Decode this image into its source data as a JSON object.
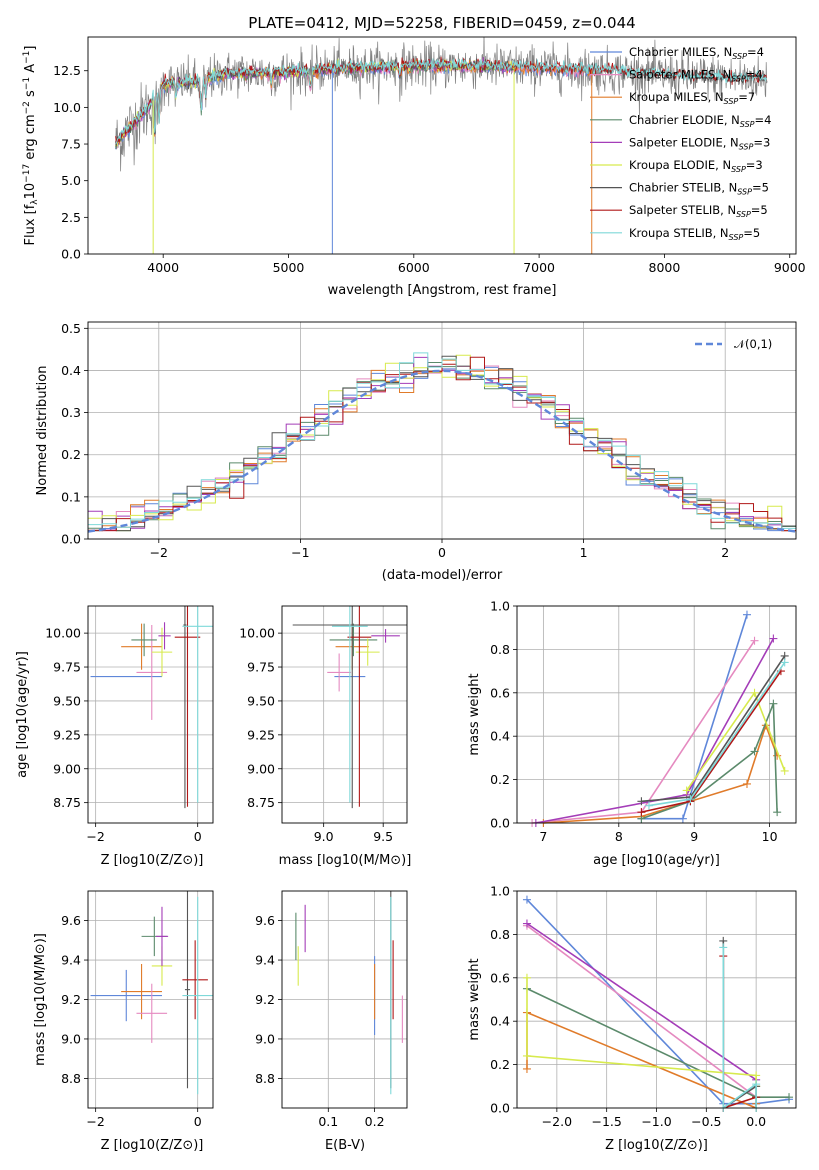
{
  "chart_data": [
    {
      "type": "line",
      "panel": "spectrum",
      "title": "PLATE=0412, MJD=52258, FIBERID=0459, z=0.044",
      "xlabel": "wavelength [Angstrom, rest frame]",
      "ylabel": "Flux [f_λ 10^-17 erg cm^-2 s^-1 A^-1]",
      "xlim": [
        3400,
        9050
      ],
      "ylim": [
        0,
        14.8
      ],
      "xticks": [
        "4000",
        "5000",
        "6000",
        "7000",
        "8000",
        "9000"
      ],
      "yticks": [
        "0.0",
        "2.5",
        "5.0",
        "7.5",
        "10.0",
        "12.5"
      ],
      "legend_position": "top-right",
      "data_range": [
        3620,
        8820
      ],
      "continuum_x": [
        3620,
        3700,
        3900,
        4000,
        4300,
        4500,
        5000,
        5500,
        6000,
        6500,
        7000,
        7500,
        8000,
        8500,
        8820
      ],
      "continuum_y": [
        7.5,
        8.3,
        10.2,
        11.6,
        11.8,
        12.3,
        12.4,
        12.7,
        12.8,
        12.8,
        12.7,
        12.5,
        12.2,
        12.0,
        11.9
      ],
      "series": [
        {
          "name": "Chabrier MILES, N_SSP=4",
          "color": "#5f87d9",
          "end": 7420
        },
        {
          "name": "Salpeter MILES, N_SSP=4",
          "color": "#e58ac0",
          "end": 7420
        },
        {
          "name": "Kroupa MILES, N_SSP=7",
          "color": "#e07b2a",
          "end": 7420
        },
        {
          "name": "Chabrier ELODIE, N_SSP=4",
          "color": "#5b8a6b",
          "end": 6800
        },
        {
          "name": "Salpeter ELODIE, N_SSP=3",
          "color": "#a43db8",
          "end": 6800
        },
        {
          "name": "Kroupa ELODIE, N_SSP=3",
          "color": "#d7ea4d",
          "end": 6800
        },
        {
          "name": "Chabrier STELIB, N_SSP=5",
          "color": "#555555",
          "end": 8820
        },
        {
          "name": "Salpeter STELIB, N_SSP=5",
          "color": "#b01818",
          "end": 8820
        },
        {
          "name": "Kroupa STELIB, N_SSP=5",
          "color": "#7fd9d9",
          "end": 8820
        }
      ]
    },
    {
      "type": "line",
      "panel": "residuals",
      "xlabel": "(data-model)/error",
      "ylabel": "Normed distribution",
      "xlim": [
        -2.5,
        2.5
      ],
      "ylim": [
        0,
        0.515
      ],
      "xticks": [
        "−2",
        "−1",
        "0",
        "1",
        "2"
      ],
      "yticks": [
        "0.0",
        "0.1",
        "0.2",
        "0.3",
        "0.4",
        "0.5"
      ],
      "legend_position": "top-right",
      "reference": {
        "name": "𝒩(0,1)",
        "mean": 0,
        "sigma": 1
      },
      "bin_width": 0.1
    },
    {
      "type": "scatter",
      "panel": "age-vs-Z",
      "xlabel": "Z [log10(Z/Z⊙)]",
      "ylabel": "age  [log10(age/yr)]",
      "xlim": [
        -2.15,
        0.3
      ],
      "ylim": [
        8.6,
        10.2
      ],
      "xticks": [
        "−2",
        "0"
      ],
      "yticks": [
        "8.75",
        "9.00",
        "9.25",
        "9.50",
        "9.75",
        "10.00"
      ],
      "points": [
        {
          "x": -1.4,
          "xerr": 0.7,
          "y": 9.68,
          "yerr": 0.0,
          "color": "#5f87d9"
        },
        {
          "x": -1.1,
          "xerr": 0.4,
          "y": 9.9,
          "yerr": 0.17,
          "color": "#e07b2a"
        },
        {
          "x": -0.9,
          "xerr": 0.3,
          "y": 9.71,
          "yerr": 0.35,
          "color": "#e58ac0"
        },
        {
          "x": -1.05,
          "xerr": 0.25,
          "y": 9.95,
          "yerr": 0.12,
          "color": "#5b8a6b"
        },
        {
          "x": -0.7,
          "xerr": 0.2,
          "y": 9.86,
          "yerr": 0.18,
          "color": "#d7ea4d"
        },
        {
          "x": -0.65,
          "xerr": 0.12,
          "y": 9.98,
          "yerr": 0.1,
          "color": "#a43db8"
        },
        {
          "x": -0.25,
          "xerr": 0.03,
          "y": 10.06,
          "yerr": 1.35,
          "color": "#555555"
        },
        {
          "x": -0.2,
          "xerr": 0.25,
          "y": 9.97,
          "yerr": 1.25,
          "color": "#b01818"
        },
        {
          "x": 0.0,
          "xerr": 0.3,
          "y": 10.05,
          "yerr": 1.3,
          "color": "#7fd9d9"
        }
      ]
    },
    {
      "type": "scatter",
      "panel": "age-vs-mass",
      "xlabel": "mass [log10(M/M⊙)]",
      "ylabel": "",
      "xlim": [
        8.65,
        9.7
      ],
      "ylim": [
        8.6,
        10.2
      ],
      "xticks": [
        "9.0",
        "9.5"
      ],
      "yticks": [
        "8.75",
        "9.00",
        "9.25",
        "9.50",
        "9.75",
        "10.00"
      ],
      "points": [
        {
          "x": 9.22,
          "xerr": 0.13,
          "y": 9.68,
          "yerr": 0.0,
          "color": "#5f87d9"
        },
        {
          "x": 9.24,
          "xerr": 0.14,
          "y": 9.9,
          "yerr": 0.17,
          "color": "#e07b2a"
        },
        {
          "x": 9.13,
          "xerr": 0.1,
          "y": 9.71,
          "yerr": 0.14,
          "color": "#e58ac0"
        },
        {
          "x": 9.25,
          "xerr": 0.2,
          "y": 9.95,
          "yerr": 0.12,
          "color": "#5b8a6b"
        },
        {
          "x": 9.37,
          "xerr": 0.1,
          "y": 9.86,
          "yerr": 0.1,
          "color": "#d7ea4d"
        },
        {
          "x": 9.52,
          "xerr": 0.12,
          "y": 9.98,
          "yerr": 0.05,
          "color": "#a43db8"
        },
        {
          "x": 9.24,
          "xerr": 0.5,
          "y": 10.06,
          "yerr": 1.35,
          "color": "#555555"
        },
        {
          "x": 9.3,
          "xerr": 0.1,
          "y": 9.97,
          "yerr": 1.25,
          "color": "#b01818"
        },
        {
          "x": 9.22,
          "xerr": 0.15,
          "y": 10.05,
          "yerr": 1.3,
          "color": "#7fd9d9"
        }
      ]
    },
    {
      "type": "line",
      "panel": "mass-weight-vs-age",
      "xlabel": "age  [log10(age/yr)]",
      "ylabel": "mass weight",
      "xlim": [
        6.65,
        10.35
      ],
      "ylim": [
        0,
        1.0
      ],
      "xticks": [
        "7",
        "8",
        "9",
        "10"
      ],
      "yticks": [
        "0.0",
        "0.2",
        "0.4",
        "0.6",
        "0.8",
        "1.0"
      ],
      "series": [
        {
          "color": "#5f87d9",
          "x": [
            8.3,
            8.85,
            9.7
          ],
          "y": [
            0.02,
            0.02,
            0.96
          ]
        },
        {
          "color": "#e58ac0",
          "x": [
            6.85,
            8.3,
            9.8
          ],
          "y": [
            0.0,
            0.05,
            0.84
          ]
        },
        {
          "color": "#e07b2a",
          "x": [
            7.0,
            8.3,
            9.7,
            9.95,
            10.1
          ],
          "y": [
            0.0,
            0.03,
            0.18,
            0.45,
            0.31
          ]
        },
        {
          "color": "#a43db8",
          "x": [
            6.9,
            8.9,
            10.05
          ],
          "y": [
            0.0,
            0.13,
            0.85
          ]
        },
        {
          "color": "#5b8a6b",
          "x": [
            8.3,
            8.95,
            9.8,
            10.05,
            10.1
          ],
          "y": [
            0.02,
            0.1,
            0.33,
            0.55,
            0.05
          ]
        },
        {
          "color": "#d7ea4d",
          "x": [
            8.9,
            9.8,
            10.2
          ],
          "y": [
            0.15,
            0.6,
            0.24
          ]
        },
        {
          "color": "#555555",
          "x": [
            8.3,
            8.95,
            10.2
          ],
          "y": [
            0.1,
            0.12,
            0.77
          ]
        },
        {
          "color": "#b01818",
          "x": [
            8.3,
            8.95,
            10.15
          ],
          "y": [
            0.05,
            0.1,
            0.7
          ]
        },
        {
          "color": "#7fd9d9",
          "x": [
            8.4,
            8.95,
            10.2
          ],
          "y": [
            0.08,
            0.11,
            0.74
          ]
        }
      ]
    },
    {
      "type": "scatter",
      "panel": "mass-vs-Z",
      "xlabel": "Z [log10(Z/Z⊙)]",
      "ylabel": "mass [log10(M/M⊙)]",
      "xlim": [
        -2.15,
        0.3
      ],
      "ylim": [
        8.65,
        9.75
      ],
      "xticks": [
        "−2",
        "0"
      ],
      "yticks": [
        "8.8",
        "9.0",
        "9.2",
        "9.4",
        "9.6"
      ],
      "points": [
        {
          "x": -1.4,
          "xerr": 0.7,
          "y": 9.22,
          "yerr": 0.13,
          "color": "#5f87d9"
        },
        {
          "x": -1.1,
          "xerr": 0.4,
          "y": 9.24,
          "yerr": 0.14,
          "color": "#e07b2a"
        },
        {
          "x": -0.9,
          "xerr": 0.3,
          "y": 9.13,
          "yerr": 0.15,
          "color": "#e58ac0"
        },
        {
          "x": -0.85,
          "xerr": 0.25,
          "y": 9.52,
          "yerr": 0.1,
          "color": "#5b8a6b"
        },
        {
          "x": -0.7,
          "xerr": 0.2,
          "y": 9.37,
          "yerr": 0.1,
          "color": "#d7ea4d"
        },
        {
          "x": -0.7,
          "xerr": 0.12,
          "y": 9.52,
          "yerr": 0.15,
          "color": "#a43db8"
        },
        {
          "x": -0.2,
          "xerr": 0.05,
          "y": 9.25,
          "yerr": 0.5,
          "color": "#555555"
        },
        {
          "x": -0.05,
          "xerr": 0.25,
          "y": 9.3,
          "yerr": 0.2,
          "color": "#b01818"
        },
        {
          "x": 0.0,
          "xerr": 0.3,
          "y": 9.22,
          "yerr": 0.5,
          "color": "#7fd9d9"
        }
      ]
    },
    {
      "type": "scatter",
      "panel": "mass-vs-EBV",
      "xlabel": "E(B-V)",
      "ylabel": "",
      "xlim": [
        0.0,
        0.27
      ],
      "ylim": [
        8.65,
        9.75
      ],
      "xticks": [
        "0.1",
        "0.2"
      ],
      "yticks": [
        "8.8",
        "9.0",
        "9.2",
        "9.4",
        "9.6"
      ],
      "points": [
        {
          "x": 0.2,
          "xerr": 0.0,
          "y": 9.22,
          "yerr": 0.2,
          "color": "#5f87d9"
        },
        {
          "x": 0.2,
          "xerr": 0.0,
          "y": 9.24,
          "yerr": 0.14,
          "color": "#e07b2a"
        },
        {
          "x": 0.26,
          "xerr": 0.0,
          "y": 9.1,
          "yerr": 0.12,
          "color": "#e58ac0"
        },
        {
          "x": 0.03,
          "xerr": 0.0,
          "y": 9.52,
          "yerr": 0.12,
          "color": "#5b8a6b"
        },
        {
          "x": 0.035,
          "xerr": 0.0,
          "y": 9.37,
          "yerr": 0.1,
          "color": "#d7ea4d"
        },
        {
          "x": 0.05,
          "xerr": 0.0,
          "y": 9.56,
          "yerr": 0.12,
          "color": "#a43db8"
        },
        {
          "x": 0.235,
          "xerr": 0.0,
          "y": 9.25,
          "yerr": 0.5,
          "color": "#555555"
        },
        {
          "x": 0.24,
          "xerr": 0.0,
          "y": 9.3,
          "yerr": 0.2,
          "color": "#b01818"
        },
        {
          "x": 0.235,
          "xerr": 0.0,
          "y": 9.22,
          "yerr": 0.5,
          "color": "#7fd9d9"
        }
      ]
    },
    {
      "type": "line",
      "panel": "mass-weight-vs-Z",
      "xlabel": "Z [log10(Z/Z⊙)]",
      "ylabel": "mass weight",
      "xlim": [
        -2.4,
        0.4
      ],
      "ylim": [
        0,
        1.0
      ],
      "xticks": [
        "−2.0",
        "−1.5",
        "−1.0",
        "−0.5",
        "0.0"
      ],
      "yticks": [
        "0.0",
        "0.2",
        "0.4",
        "0.6",
        "0.8",
        "1.0"
      ],
      "series": [
        {
          "color": "#5f87d9",
          "x": [
            -2.3,
            -0.33,
            0.0,
            0.33
          ],
          "y": [
            0.96,
            0.02,
            0.02,
            0.04
          ]
        },
        {
          "color": "#e58ac0",
          "x": [
            -2.3,
            0.0
          ],
          "y": [
            0.84,
            0.05
          ]
        },
        {
          "color": "#e07b2a",
          "x": [
            -2.3,
            -2.3,
            0.0,
            0.0
          ],
          "y": [
            0.18,
            0.44,
            0.0,
            0.02
          ]
        },
        {
          "color": "#a43db8",
          "x": [
            -2.3,
            0.0
          ],
          "y": [
            0.85,
            0.13
          ]
        },
        {
          "color": "#5b8a6b",
          "x": [
            -2.3,
            0.0,
            0.33
          ],
          "y": [
            0.55,
            0.05,
            0.05
          ]
        },
        {
          "color": "#d7ea4d",
          "x": [
            -2.3,
            -2.3,
            0.0,
            0.0
          ],
          "y": [
            0.6,
            0.24,
            0.15,
            0.1
          ]
        },
        {
          "color": "#555555",
          "x": [
            -0.33,
            -0.33,
            0.0,
            0.0
          ],
          "y": [
            0.77,
            0.0,
            0.1,
            0.0
          ]
        },
        {
          "color": "#b01818",
          "x": [
            -0.33,
            -0.33,
            0.0
          ],
          "y": [
            0.7,
            0.0,
            0.05
          ]
        },
        {
          "color": "#7fd9d9",
          "x": [
            -0.33,
            -0.33,
            0.0,
            0.0
          ],
          "y": [
            0.74,
            0.0,
            0.11,
            0.0
          ]
        }
      ]
    }
  ]
}
